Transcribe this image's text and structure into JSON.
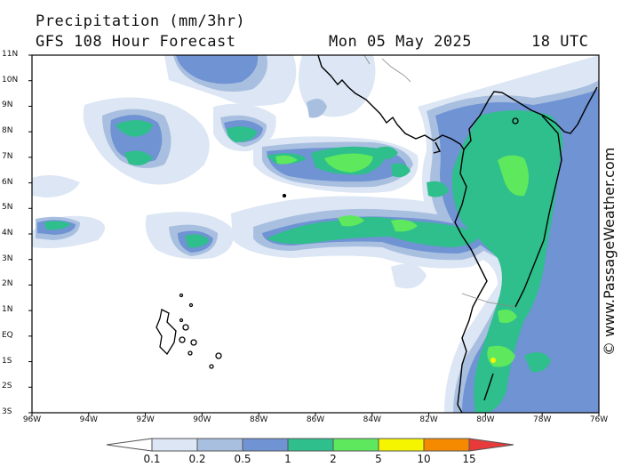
{
  "header": {
    "title": "Precipitation (mm/3hr)",
    "subtitle": "GFS 108 Hour Forecast",
    "date": "Mon 05 May 2025",
    "time": "18 UTC"
  },
  "watermark": "© www.PassageWeather.com",
  "lat_labels": [
    "11N",
    "10N",
    "9N",
    "8N",
    "7N",
    "6N",
    "5N",
    "4N",
    "3N",
    "2N",
    "1N",
    "EQ",
    "1S",
    "2S",
    "3S"
  ],
  "lon_labels": [
    "96W",
    "94W",
    "92W",
    "90W",
    "88W",
    "86W",
    "84W",
    "82W",
    "80W",
    "78W",
    "76W"
  ],
  "map_extent": {
    "lon_min": -96,
    "lon_max": -76,
    "lat_min": -3,
    "lat_max": 11
  },
  "legend": {
    "labels": [
      "0.1",
      "0.2",
      "0.5",
      "1",
      "2",
      "5",
      "10",
      "15"
    ],
    "colors": [
      "#ffffff",
      "#dce6f4",
      "#a9bfe0",
      "#6f93d3",
      "#2fbf8c",
      "#5ee85e",
      "#f5f500",
      "#f58a00",
      "#e83a3a"
    ]
  },
  "precip_colors": {
    "light": "#dce6f4",
    "low": "#a9bfe0",
    "mid": "#6f93d3",
    "green": "#2fbf8c",
    "bright": "#5ee85e",
    "yellow": "#f5f500"
  }
}
